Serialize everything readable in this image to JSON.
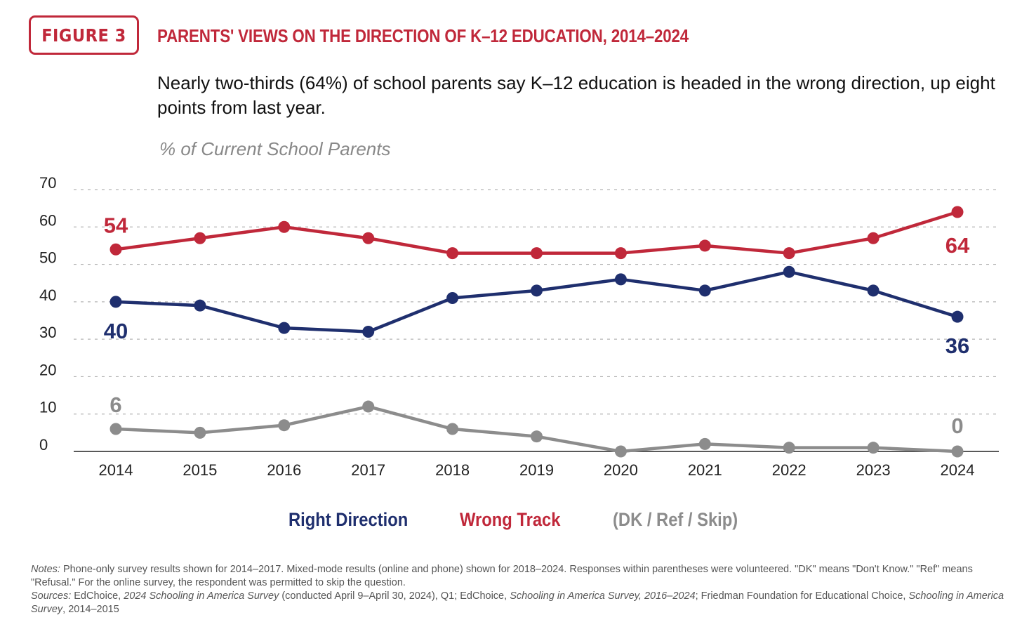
{
  "figure_label": "FIGURE 3",
  "title": "PARENTS' VIEWS ON THE DIRECTION OF K–12 EDUCATION, 2014–2024",
  "subtitle": "Nearly two-thirds (64%) of school parents say K–12 education is headed in the wrong direction, up eight points from last year.",
  "unit_label": "% of Current School Parents",
  "colors": {
    "accent": "#c0283a",
    "right_direction": "#1f2f6e",
    "wrong_track": "#c0283a",
    "dk": "#8c8c8c"
  },
  "chart_data": {
    "type": "line",
    "x": [
      "2014",
      "2015",
      "2016",
      "2017",
      "2018",
      "2019",
      "2020",
      "2021",
      "2022",
      "2023",
      "2024"
    ],
    "ylim": [
      0,
      70
    ],
    "yticks": [
      0,
      10,
      20,
      30,
      40,
      50,
      60,
      70
    ],
    "grid": true,
    "legend_position": "bottom",
    "series": [
      {
        "name": "Right Direction",
        "color": "#1f2f6e",
        "values": [
          40,
          39,
          33,
          32,
          41,
          43,
          46,
          43,
          48,
          43,
          36
        ]
      },
      {
        "name": "Wrong Track",
        "color": "#c0283a",
        "values": [
          54,
          57,
          60,
          57,
          53,
          53,
          53,
          55,
          53,
          57,
          64
        ]
      },
      {
        "name": "(DK / Ref / Skip)",
        "color": "#8c8c8c",
        "values": [
          6,
          5,
          7,
          12,
          6,
          4,
          0,
          2,
          1,
          1,
          0
        ]
      }
    ],
    "annotations": [
      {
        "series": "Wrong Track",
        "x": "2014",
        "label": "54"
      },
      {
        "series": "Wrong Track",
        "x": "2024",
        "label": "64"
      },
      {
        "series": "Right Direction",
        "x": "2014",
        "label": "40"
      },
      {
        "series": "Right Direction",
        "x": "2024",
        "label": "36"
      },
      {
        "series": "(DK / Ref / Skip)",
        "x": "2014",
        "label": "6"
      },
      {
        "series": "(DK / Ref / Skip)",
        "x": "2024",
        "label": "0"
      }
    ]
  },
  "legend": {
    "right_direction": "Right Direction",
    "wrong_track": "Wrong Track",
    "dk": "(DK / Ref / Skip)"
  },
  "notes": {
    "notes_label": "Notes:",
    "notes_text": " Phone-only survey results shown for 2014–2017. Mixed-mode results (online and phone) shown for 2018–2024. Responses within parentheses were volunteered. \"DK\" means \"Don't Know.\" \"Ref\" means \"Refusal.\" For the online survey, the respondent was permitted to skip the question.",
    "sources_label": "Sources:",
    "sources_1": " EdChoice, ",
    "sources_2": "2024 Schooling in America Survey",
    "sources_3": " (conducted April 9–April 30, 2024), Q1; EdChoice, ",
    "sources_4": "Schooling in America Survey, 2016–2024",
    "sources_5": "; Friedman Foundation for Educational Choice, ",
    "sources_6": "Schooling in America Survey",
    "sources_7": ", 2014–2015"
  }
}
